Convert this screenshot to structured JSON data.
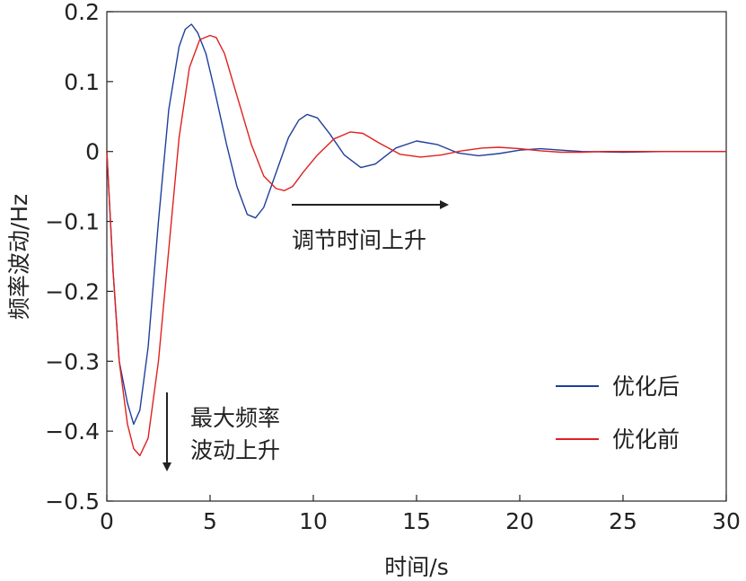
{
  "chart_data": {
    "type": "line",
    "xlabel": "时间/s",
    "ylabel": "频率波动/Hz",
    "xlim": [
      0,
      30
    ],
    "ylim": [
      -0.5,
      0.2
    ],
    "xticks": [
      0,
      5,
      10,
      15,
      20,
      25,
      30
    ],
    "xtick_labels": [
      "0",
      "5",
      "10",
      "15",
      "20",
      "25",
      "30"
    ],
    "yticks": [
      0.2,
      0.1,
      0,
      -0.1,
      -0.2,
      -0.3,
      -0.4,
      -0.5
    ],
    "ytick_labels": [
      "0.2",
      "0.1",
      "0",
      "−0.1",
      "−0.2",
      "−0.3",
      "−0.4",
      "−0.5"
    ],
    "grid": false,
    "legend_position": "bottom-right",
    "series": [
      {
        "name": "优化后",
        "color": "#1f3f9a",
        "x": [
          0,
          0.3,
          0.6,
          1.0,
          1.3,
          1.6,
          2.0,
          2.5,
          3.0,
          3.5,
          3.8,
          4.1,
          4.4,
          4.8,
          5.2,
          5.8,
          6.3,
          6.8,
          7.2,
          7.6,
          8.2,
          8.8,
          9.3,
          9.7,
          10.2,
          10.8,
          11.5,
          12.3,
          13.0,
          14.0,
          15.0,
          16.0,
          17.0,
          18.0,
          19.0,
          20.0,
          21.0,
          22.0,
          23.0,
          25.0,
          27.0,
          30.0
        ],
        "y": [
          0,
          -0.17,
          -0.3,
          -0.36,
          -0.39,
          -0.37,
          -0.28,
          -0.1,
          0.06,
          0.15,
          0.175,
          0.182,
          0.17,
          0.14,
          0.09,
          0.01,
          -0.05,
          -0.09,
          -0.095,
          -0.08,
          -0.03,
          0.02,
          0.045,
          0.053,
          0.048,
          0.025,
          -0.005,
          -0.023,
          -0.018,
          0.005,
          0.015,
          0.01,
          -0.002,
          -0.006,
          -0.003,
          0.002,
          0.004,
          0.002,
          0,
          -0.001,
          0,
          0
        ]
      },
      {
        "name": "优化前",
        "color": "#e02020",
        "x": [
          0,
          0.3,
          0.6,
          1.0,
          1.3,
          1.6,
          2.0,
          2.5,
          3.0,
          3.5,
          4.0,
          4.5,
          5.0,
          5.3,
          5.7,
          6.3,
          7.0,
          7.6,
          8.2,
          8.6,
          9.0,
          9.5,
          10.2,
          11.0,
          11.8,
          12.4,
          13.2,
          14.2,
          15.2,
          16.2,
          17.2,
          18.2,
          19.0,
          20.0,
          21.0,
          22.0,
          23.0,
          24.0,
          26.0,
          28.0,
          30.0
        ],
        "y": [
          0,
          -0.17,
          -0.3,
          -0.39,
          -0.425,
          -0.435,
          -0.41,
          -0.3,
          -0.14,
          0.02,
          0.12,
          0.16,
          0.166,
          0.163,
          0.14,
          0.08,
          0.01,
          -0.035,
          -0.053,
          -0.056,
          -0.05,
          -0.03,
          -0.005,
          0.018,
          0.028,
          0.026,
          0.012,
          -0.004,
          -0.008,
          -0.005,
          0.001,
          0.005,
          0.006,
          0.004,
          0.001,
          -0.001,
          -0.001,
          0,
          0,
          0,
          0
        ]
      }
    ],
    "annotations": [
      {
        "id": "annot-time",
        "text": "调节时间上升",
        "arrow": "right"
      },
      {
        "id": "annot-freq",
        "lines": [
          "最大频率",
          "波动上升"
        ],
        "arrow": "down"
      }
    ]
  }
}
